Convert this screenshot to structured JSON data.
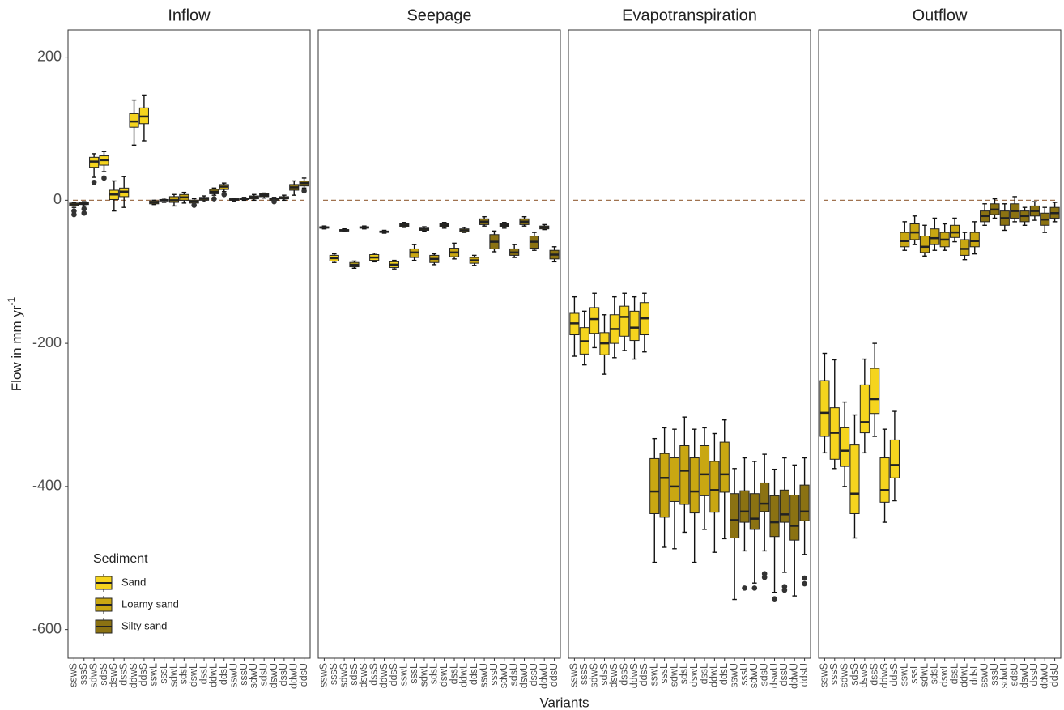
{
  "chart_data": {
    "type": "boxplot",
    "xlabel": "Variants",
    "ylabel": "Flow in mm yr",
    "ylabel_superscript": "-1",
    "categories": [
      "sswS",
      "sssS",
      "sdwS",
      "sdsS",
      "dswS",
      "dssS",
      "ddwS",
      "ddsS",
      "sswL",
      "sssL",
      "sdwL",
      "sdsL",
      "dswL",
      "dssL",
      "ddwL",
      "ddsL",
      "sswU",
      "sssU",
      "sdwU",
      "sdsU",
      "dswU",
      "dssU",
      "ddwU",
      "ddsU"
    ],
    "ylim": [
      -640,
      238
    ],
    "yticks": [
      -600,
      -400,
      -200,
      0,
      200
    ],
    "grid": false,
    "reference_line": 0,
    "legend": {
      "title": "Sediment",
      "corner": "bottom-left",
      "entries": [
        {
          "name": "Sand",
          "color": "#f5d41e"
        },
        {
          "name": "Loamy sand",
          "color": "#c9a712"
        },
        {
          "name": "Silty sand",
          "color": "#8b7212"
        }
      ]
    },
    "facets": [
      {
        "title": "Inflow",
        "groups": [
          {
            "min": [
              -10,
              -8,
              32,
              40,
              -15,
              -10,
              77,
              83
            ],
            "q1": [
              -8,
              -6,
              46,
              49,
              1,
              5,
              102,
              107
            ],
            "median": [
              -6,
              -5,
              54,
              56,
              8,
              12,
              110,
              117
            ],
            "q3": [
              -4,
              -3,
              60,
              62,
              14,
              17,
              121,
              129
            ],
            "max": [
              -3,
              -2,
              65,
              68,
              27,
              33,
              140,
              147
            ],
            "outliers": [
              [
                -15,
                -20
              ],
              [
                -12,
                -18
              ],
              [
                25
              ],
              [
                31
              ],
              [],
              [],
              [],
              []
            ]
          },
          {
            "min": [
              -6,
              -3,
              -8,
              -4,
              -6,
              -2,
              7,
              12
            ],
            "q1": [
              -5,
              -1,
              -3,
              0,
              -4,
              0,
              9,
              15
            ],
            "median": [
              -3,
              0,
              0,
              4,
              -2,
              2,
              12,
              19
            ],
            "q3": [
              -1,
              1,
              5,
              8,
              0,
              4,
              15,
              22
            ],
            "max": [
              0,
              3,
              8,
              11,
              2,
              6,
              17,
              24
            ],
            "outliers": [
              [],
              [],
              [],
              [],
              [
                -7
              ],
              [],
              [
                2
              ],
              [
                8
              ]
            ]
          },
          {
            "min": [
              -1,
              0,
              0,
              3,
              -1,
              0,
              7,
              17
            ],
            "q1": [
              0,
              1,
              2,
              5,
              0,
              2,
              14,
              20
            ],
            "median": [
              1,
              2,
              4,
              7,
              2,
              3,
              18,
              24
            ],
            "q3": [
              2,
              3,
              6,
              9,
              3,
              5,
              22,
              27
            ],
            "max": [
              3,
              4,
              8,
              10,
              4,
              7,
              27,
              31
            ],
            "outliers": [
              [],
              [],
              [],
              [],
              [
                -2
              ],
              [],
              [],
              [
                13
              ]
            ]
          }
        ]
      },
      {
        "title": "Seepage",
        "groups": [
          {
            "min": [
              -40,
              -87,
              -44,
              -95,
              -40,
              -86,
              -46,
              -96
            ],
            "q1": [
              -39,
              -85,
              -43,
              -93,
              -39,
              -84,
              -45,
              -94
            ],
            "median": [
              -38,
              -81,
              -42,
              -90,
              -38,
              -80,
              -44,
              -90
            ],
            "q3": [
              -37,
              -77,
              -41,
              -87,
              -37,
              -76,
              -43,
              -86
            ],
            "max": [
              -36,
              -75,
              -40,
              -85,
              -36,
              -74,
              -42,
              -84
            ],
            "outliers": [
              [],
              [],
              [],
              [],
              [],
              [],
              [],
              []
            ]
          },
          {
            "min": [
              -38,
              -84,
              -43,
              -90,
              -39,
              -82,
              -45,
              -91
            ],
            "q1": [
              -37,
              -80,
              -42,
              -87,
              -37,
              -79,
              -44,
              -88
            ],
            "median": [
              -35,
              -73,
              -40,
              -82,
              -35,
              -73,
              -42,
              -84
            ],
            "q3": [
              -33,
              -68,
              -39,
              -77,
              -33,
              -67,
              -40,
              -80
            ],
            "max": [
              -31,
              -62,
              -37,
              -75,
              -31,
              -60,
              -38,
              -77
            ],
            "outliers": [
              [],
              [],
              [],
              [],
              [],
              [],
              [],
              []
            ]
          },
          {
            "min": [
              -36,
              -72,
              -39,
              -80,
              -36,
              -70,
              -41,
              -86
            ],
            "q1": [
              -34,
              -68,
              -37,
              -77,
              -34,
              -67,
              -40,
              -82
            ],
            "median": [
              -30,
              -58,
              -35,
              -73,
              -30,
              -58,
              -38,
              -76
            ],
            "q3": [
              -26,
              -48,
              -33,
              -68,
              -26,
              -50,
              -36,
              -70
            ],
            "max": [
              -23,
              -43,
              -31,
              -62,
              -23,
              -45,
              -34,
              -65
            ],
            "outliers": [
              [],
              [],
              [],
              [],
              [],
              [],
              [],
              []
            ]
          }
        ]
      },
      {
        "title": "Evapotranspiration",
        "groups": [
          {
            "min": [
              -218,
              -230,
              -206,
              -243,
              -220,
              -210,
              -222,
              -212
            ],
            "q1": [
              -188,
              -215,
              -186,
              -216,
              -200,
              -190,
              -196,
              -188
            ],
            "median": [
              -172,
              -197,
              -166,
              -200,
              -180,
              -163,
              -178,
              -165
            ],
            "q3": [
              -158,
              -178,
              -150,
              -185,
              -160,
              -148,
              -155,
              -143
            ],
            "max": [
              -135,
              -155,
              -130,
              -160,
              -135,
              -130,
              -135,
              -130
            ],
            "outliers": [
              [],
              [],
              [],
              [],
              [],
              [],
              [],
              []
            ]
          },
          {
            "min": [
              -506,
              -485,
              -487,
              -464,
              -506,
              -460,
              -492,
              -473
            ],
            "q1": [
              -438,
              -443,
              -421,
              -425,
              -437,
              -413,
              -436,
              -408
            ],
            "median": [
              -407,
              -388,
              -400,
              -378,
              -407,
              -383,
              -405,
              -383
            ],
            "q3": [
              -361,
              -354,
              -360,
              -343,
              -360,
              -343,
              -365,
              -338
            ],
            "max": [
              -333,
              -318,
              -320,
              -303,
              -320,
              -318,
              -326,
              -307
            ],
            "outliers": [
              [],
              [],
              [],
              [],
              [],
              [],
              [],
              []
            ]
          },
          {
            "min": [
              -558,
              -490,
              -535,
              -490,
              -548,
              -520,
              -553,
              -495
            ],
            "q1": [
              -472,
              -450,
              -460,
              -435,
              -470,
              -450,
              -475,
              -448
            ],
            "median": [
              -447,
              -435,
              -445,
              -424,
              -450,
              -439,
              -455,
              -435
            ],
            "q3": [
              -410,
              -406,
              -410,
              -395,
              -413,
              -405,
              -412,
              -398
            ],
            "max": [
              -375,
              -360,
              -365,
              -355,
              -376,
              -360,
              -370,
              -360
            ],
            "outliers": [
              [],
              [
                -542
              ],
              [
                -542
              ],
              [
                -522,
                -527
              ],
              [
                -557
              ],
              [
                -540,
                -545
              ],
              [],
              [
                -528,
                -536
              ]
            ]
          }
        ]
      },
      {
        "title": "Outflow",
        "groups": [
          {
            "min": [
              -353,
              -375,
              -400,
              -472,
              -353,
              -330,
              -450,
              -420
            ],
            "q1": [
              -330,
              -362,
              -372,
              -438,
              -325,
              -298,
              -422,
              -388
            ],
            "median": [
              -297,
              -325,
              -350,
              -410,
              -310,
              -278,
              -405,
              -370
            ],
            "q3": [
              -252,
              -290,
              -318,
              -342,
              -258,
              -235,
              -360,
              -335
            ],
            "max": [
              -214,
              -223,
              -282,
              -300,
              -222,
              -200,
              -320,
              -295
            ],
            "outliers": [
              [],
              [],
              [],
              [],
              [],
              [],
              [],
              []
            ]
          },
          {
            "min": [
              -70,
              -62,
              -78,
              -70,
              -70,
              -58,
              -83,
              -75
            ],
            "q1": [
              -65,
              -55,
              -73,
              -62,
              -65,
              -52,
              -77,
              -65
            ],
            "median": [
              -57,
              -45,
              -65,
              -53,
              -55,
              -45,
              -68,
              -57
            ],
            "q3": [
              -45,
              -33,
              -50,
              -40,
              -45,
              -35,
              -55,
              -45
            ],
            "max": [
              -30,
              -22,
              -35,
              -25,
              -33,
              -25,
              -45,
              -30
            ],
            "outliers": [
              [],
              [],
              [],
              [],
              [],
              [],
              [],
              []
            ]
          },
          {
            "min": [
              -35,
              -25,
              -42,
              -30,
              -35,
              -28,
              -45,
              -30
            ],
            "q1": [
              -30,
              -20,
              -35,
              -25,
              -30,
              -22,
              -35,
              -25
            ],
            "median": [
              -22,
              -13,
              -25,
              -15,
              -22,
              -15,
              -27,
              -18
            ],
            "q3": [
              -15,
              -5,
              -15,
              -5,
              -15,
              -8,
              -18,
              -10
            ],
            "max": [
              -5,
              2,
              -5,
              5,
              -10,
              -2,
              -10,
              -3
            ],
            "outliers": [
              [],
              [],
              [],
              [],
              [],
              [],
              [],
              []
            ]
          }
        ]
      }
    ]
  }
}
